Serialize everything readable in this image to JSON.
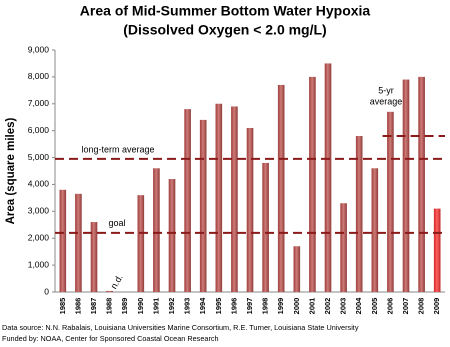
{
  "chart_data": {
    "type": "bar",
    "title": [
      "Area of Mid-Summer Bottom Water Hypoxia",
      "(Dissolved Oxygen < 2.0 mg/L)"
    ],
    "y_label": "Area (square miles)",
    "categories": [
      "1985",
      "1986",
      "1987",
      "1988",
      "1989",
      "1990",
      "1991",
      "1992",
      "1993",
      "1994",
      "1995",
      "1996",
      "1997",
      "1998",
      "1999",
      "2000",
      "2001",
      "2002",
      "2003",
      "2004",
      "2005",
      "2006",
      "2007",
      "2008",
      "2009"
    ],
    "values": [
      3800,
      3650,
      2600,
      40,
      null,
      3600,
      4600,
      4200,
      6800,
      6400,
      7000,
      6900,
      6100,
      4800,
      7700,
      1700,
      8000,
      8500,
      3300,
      5800,
      4600,
      6700,
      7900,
      8000,
      3100
    ],
    "colors": [
      "#c0504d",
      "#c0504d",
      "#c0504d",
      "#c0504d",
      "#c0504d",
      "#c0504d",
      "#c0504d",
      "#c0504d",
      "#c0504d",
      "#c0504d",
      "#c0504d",
      "#c0504d",
      "#c0504d",
      "#c0504d",
      "#c0504d",
      "#c0504d",
      "#c0504d",
      "#c0504d",
      "#c0504d",
      "#c0504d",
      "#c0504d",
      "#c0504d",
      "#c0504d",
      "#c0504d",
      "#ff3030"
    ],
    "ylim": [
      0,
      9000
    ],
    "yticks": [
      0,
      {
        "value": 1000,
        "label": "1,000"
      },
      {
        "value": 2000,
        "label": "2,000"
      },
      {
        "value": 3000,
        "label": "3,000"
      },
      {
        "value": 4000,
        "label": "4,000"
      },
      {
        "value": 5000,
        "label": "5,000"
      },
      {
        "value": 6000,
        "label": "6,000"
      },
      {
        "value": 7000,
        "label": "7,000"
      },
      {
        "value": 8000,
        "label": "8,000"
      },
      {
        "value": 9000,
        "label": "9,000"
      }
    ],
    "reference_lines": [
      {
        "label": [
          "long-term average"
        ],
        "value": 4950
      },
      {
        "label": [
          "goal"
        ],
        "value": 2200
      },
      {
        "label": [
          "5-yr",
          "average"
        ],
        "value": 5800,
        "start": "2006"
      }
    ],
    "annotations": [
      {
        "text": "n.d.",
        "at": "1989"
      }
    ],
    "footer": [
      "Data source: N.N. Rabalais, Louisiana Universities Marine Consortium, R.E. Turner, Louisiana State University",
      "Funded by: NOAA, Center for Sponsored Coastal Ocean Research"
    ]
  }
}
